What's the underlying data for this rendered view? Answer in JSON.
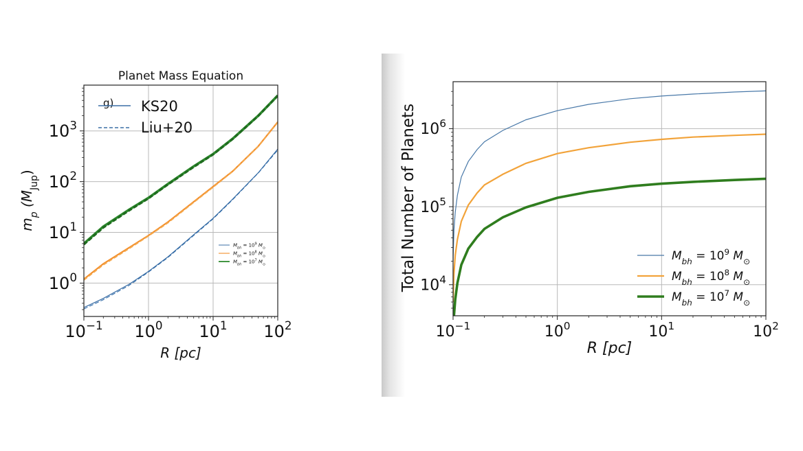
{
  "chart_data": [
    {
      "type": "line",
      "title": "Planet Mass Equation",
      "xlabel": "R [pc]",
      "ylabel": "m_p (M_Jup)",
      "xscale": "log",
      "yscale": "log",
      "xlim": [
        0.1,
        100
      ],
      "ylim": [
        0.22,
        8000
      ],
      "xticks": [
        {
          "value": 0.1,
          "base": "10",
          "exp": "−1"
        },
        {
          "value": 1,
          "base": "10",
          "exp": "0"
        },
        {
          "value": 10,
          "base": "10",
          "exp": "1"
        },
        {
          "value": 100,
          "base": "10",
          "exp": "2"
        }
      ],
      "yticks": [
        {
          "value": 1,
          "base": "10",
          "exp": "0"
        },
        {
          "value": 10,
          "base": "10",
          "exp": "1"
        },
        {
          "value": 100,
          "base": "10",
          "exp": "2"
        },
        {
          "value": 1000,
          "base": "10",
          "exp": "3"
        }
      ],
      "grid": true,
      "annotation": "g)",
      "style_legend": [
        {
          "label": "KS20",
          "style": "solid"
        },
        {
          "label": "Liu+20",
          "style": "dashed"
        }
      ],
      "legend": {
        "placement": "upper-left"
      },
      "mass_legend": {
        "placement": "lower-right"
      },
      "x": [
        0.1,
        0.2,
        0.5,
        1,
        2,
        5,
        10,
        20,
        50,
        100
      ],
      "series": [
        {
          "name": "M_bh = 10^9 M_⊙",
          "color": "#3a6ea5",
          "width": 1.2,
          "values": [
            0.33,
            0.5,
            0.95,
            1.7,
            3.3,
            9,
            19,
            45,
            150,
            440
          ],
          "liu_values": [
            0.31,
            0.47,
            0.9,
            1.65,
            3.2,
            8.7,
            18.5,
            44,
            148,
            420
          ]
        },
        {
          "name": "M_bh = 10^8 M_⊙",
          "color": "#f28e2b",
          "width": 2.2,
          "values": [
            1.2,
            2.4,
            5.0,
            8.7,
            16,
            40,
            80,
            160,
            500,
            1500
          ],
          "liu_values": [
            1.15,
            2.3,
            4.8,
            8.5,
            15.5,
            39,
            78,
            158,
            495,
            1480
          ]
        },
        {
          "name": "M_bh = 10^7 M_⊙",
          "color": "#2e8b2e",
          "width": 3.6,
          "values": [
            6,
            13,
            28,
            48,
            90,
            200,
            350,
            700,
            2000,
            5000
          ],
          "liu_values": [
            5.8,
            12.5,
            27,
            47,
            88,
            195,
            345,
            690,
            1980,
            4950
          ]
        }
      ]
    },
    {
      "type": "line",
      "title": "",
      "xlabel": "R [pc]",
      "ylabel": "Total Number of Planets",
      "xscale": "log",
      "yscale": "log",
      "xlim": [
        0.1,
        100
      ],
      "ylim": [
        4000,
        4000000
      ],
      "xticks": [
        {
          "value": 0.1,
          "base": "10",
          "exp": "−1"
        },
        {
          "value": 1,
          "base": "10",
          "exp": "0"
        },
        {
          "value": 10,
          "base": "10",
          "exp": "1"
        },
        {
          "value": 100,
          "base": "10",
          "exp": "2"
        }
      ],
      "yticks": [
        {
          "value": 10000,
          "base": "10",
          "exp": "4"
        },
        {
          "value": 100000,
          "base": "10",
          "exp": "5"
        },
        {
          "value": 1000000,
          "base": "10",
          "exp": "6"
        }
      ],
      "grid": true,
      "legend": {
        "placement": "lower-right"
      },
      "x": [
        0.1,
        0.102,
        0.105,
        0.11,
        0.12,
        0.14,
        0.17,
        0.2,
        0.3,
        0.5,
        1,
        2,
        5,
        10,
        20,
        50,
        100
      ],
      "series": [
        {
          "name": "M_bh = 10^9 M_⊙",
          "color": "#4878a8",
          "width": 1.2,
          "values": [
            20000,
            50000,
            85000,
            140000,
            240000,
            380000,
            540000,
            680000,
            950000,
            1300000,
            1700000,
            2050000,
            2420000,
            2620000,
            2780000,
            2950000,
            3050000
          ]
        },
        {
          "name": "M_bh = 10^8 M_⊙",
          "color": "#f2a33a",
          "width": 2.2,
          "values": [
            6000,
            14000,
            24000,
            38000,
            65000,
            105000,
            150000,
            190000,
            260000,
            360000,
            480000,
            570000,
            670000,
            730000,
            780000,
            820000,
            850000
          ]
        },
        {
          "name": "M_bh = 10^7 M_⊙",
          "color": "#2f7d1e",
          "width": 3.6,
          "values": [
            4000,
            4000,
            6500,
            10500,
            18000,
            29000,
            41000,
            52000,
            73000,
            98000,
            130000,
            155000,
            183000,
            197000,
            208000,
            220000,
            228000
          ]
        }
      ]
    }
  ]
}
